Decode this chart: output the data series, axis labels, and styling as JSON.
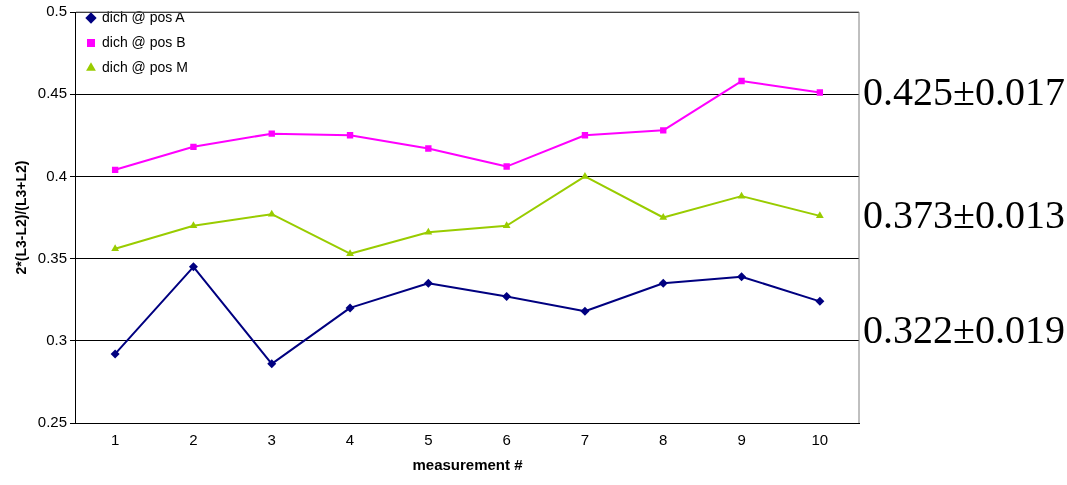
{
  "chart_data": {
    "type": "line",
    "xlabel": "measurement #",
    "ylabel": "2*(L3-L2)/(L3+L2)",
    "categories": [
      "1",
      "2",
      "3",
      "4",
      "5",
      "6",
      "7",
      "8",
      "9",
      "10"
    ],
    "series": [
      {
        "name": "dich @ pos A",
        "color": "#000080",
        "marker": "diamond",
        "values": [
          0.292,
          0.345,
          0.286,
          0.32,
          0.335,
          0.327,
          0.318,
          0.335,
          0.339,
          0.324
        ]
      },
      {
        "name": "dich @ pos B",
        "color": "#ff00ff",
        "marker": "square",
        "values": [
          0.404,
          0.418,
          0.426,
          0.425,
          0.417,
          0.406,
          0.425,
          0.428,
          0.458,
          0.451
        ]
      },
      {
        "name": "dich @ pos M",
        "color": "#99cc00",
        "marker": "triangle",
        "values": [
          0.356,
          0.37,
          0.377,
          0.353,
          0.366,
          0.37,
          0.4,
          0.375,
          0.388,
          0.376
        ]
      }
    ],
    "ylim": [
      0.25,
      0.5
    ],
    "yticks": [
      0.25,
      0.3,
      0.35,
      0.4,
      0.45,
      0.5
    ],
    "grid": "y",
    "legend": "top left",
    "annotations": [
      "0.425±0.017",
      "0.373±0.013",
      "0.322±0.019"
    ]
  }
}
